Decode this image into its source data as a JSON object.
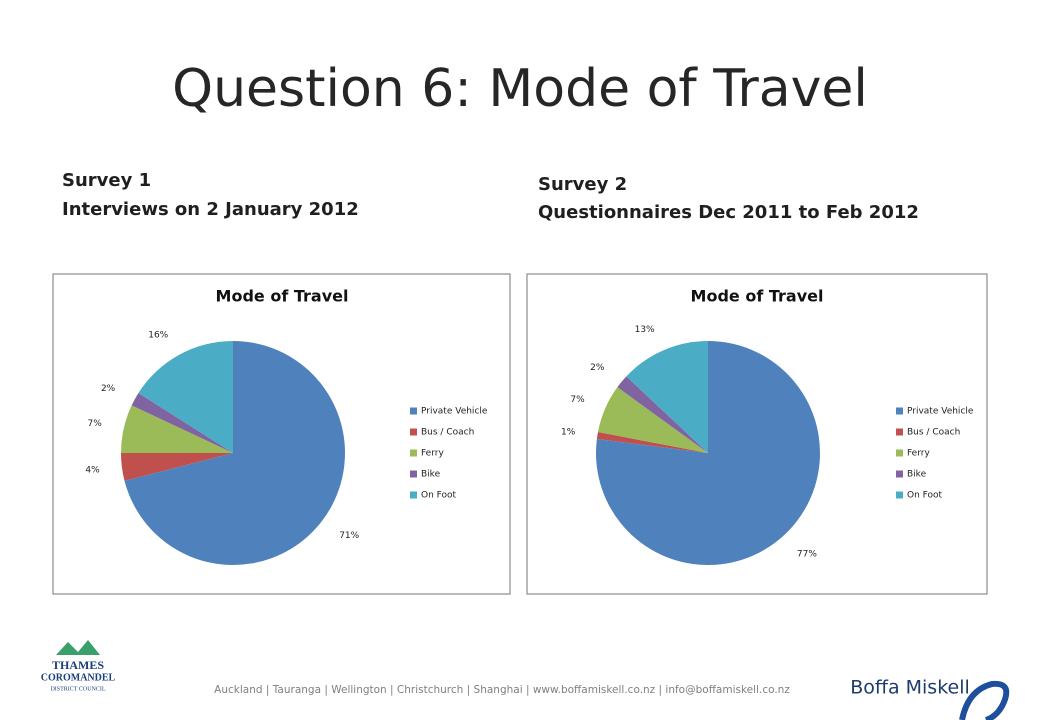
{
  "title": "Question 6: Mode of Travel",
  "surveys": [
    {
      "heading": "Survey 1",
      "subheading": "Interviews on 2 January 2012"
    },
    {
      "heading": "Survey 2",
      "subheading": "Questionnaires Dec 2011 to Feb 2012"
    }
  ],
  "chart_data": [
    {
      "type": "pie",
      "title": "Mode of Travel",
      "categories": [
        "Private Vehicle",
        "Bus / Coach",
        "Ferry",
        "Bike",
        "On Foot"
      ],
      "values": [
        71,
        4,
        7,
        2,
        16
      ],
      "value_labels": [
        "71%",
        "4%",
        "7%",
        "2%",
        "16%"
      ],
      "colors": [
        "#4f81bd",
        "#c0504d",
        "#9bbb59",
        "#8064a2",
        "#4bacc6"
      ]
    },
    {
      "type": "pie",
      "title": "Mode of Travel",
      "categories": [
        "Private Vehicle",
        "Bus / Coach",
        "Ferry",
        "Bike",
        "On Foot"
      ],
      "values": [
        77,
        1,
        7,
        2,
        13
      ],
      "value_labels": [
        "77%",
        "1%",
        "7%",
        "2%",
        "13%"
      ],
      "colors": [
        "#4f81bd",
        "#c0504d",
        "#9bbb59",
        "#8064a2",
        "#4bacc6"
      ]
    }
  ],
  "footer": {
    "logo": [
      "THAMES",
      "COROMANDEL",
      "DISTRICT COUNCIL"
    ],
    "text": "Auckland | Tauranga | Wellington | Christchurch | Shanghai | www.boffamiskell.co.nz | info@boffamiskell.co.nz",
    "brand": "Boffa Miskell"
  }
}
